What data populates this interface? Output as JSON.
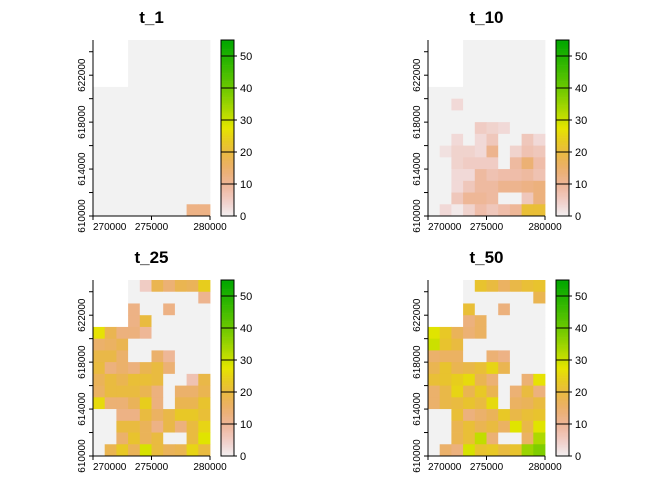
{
  "chart_data": [
    {
      "type": "heatmap",
      "title": "t_1",
      "x_ticks": [
        "270000",
        "275000",
        "280000"
      ],
      "y_ticks": [
        "610000",
        "614000",
        "618000",
        "622000"
      ],
      "x_range": [
        270000,
        280000
      ],
      "y_range": [
        610000,
        625000
      ],
      "legend": {
        "ticks": [
          "0",
          "10",
          "20",
          "30",
          "40",
          "50"
        ],
        "range": [
          0,
          55
        ],
        "placement": "right"
      },
      "grid": [
        [
          null,
          null,
          null,
          0,
          0,
          0,
          0,
          0,
          0,
          0
        ],
        [
          null,
          null,
          null,
          0,
          0,
          0,
          0,
          0,
          0,
          0
        ],
        [
          null,
          null,
          null,
          0,
          0,
          0,
          0,
          0,
          0,
          0
        ],
        [
          null,
          null,
          null,
          0,
          0,
          0,
          0,
          0,
          0,
          0
        ],
        [
          0,
          0,
          0,
          0,
          0,
          0,
          0,
          0,
          0,
          0
        ],
        [
          0,
          0,
          0,
          0,
          0,
          0,
          0,
          0,
          0,
          0
        ],
        [
          0,
          0,
          0,
          0,
          0,
          0,
          0,
          0,
          0,
          0
        ],
        [
          0,
          0,
          0,
          0,
          0,
          0,
          0,
          0,
          0,
          0
        ],
        [
          0,
          0,
          0,
          0,
          0,
          0,
          0,
          0,
          0,
          0
        ],
        [
          0,
          0,
          0,
          0,
          0,
          0,
          0,
          0,
          0,
          0
        ],
        [
          0,
          0,
          0,
          0,
          0,
          0,
          0,
          0,
          0,
          0
        ],
        [
          0,
          0,
          0,
          0,
          0,
          0,
          0,
          0,
          0,
          0
        ],
        [
          0,
          0,
          0,
          0,
          0,
          0,
          0,
          0,
          0,
          0
        ],
        [
          0,
          0,
          0,
          0,
          0,
          0,
          0,
          0,
          0,
          0
        ],
        [
          0,
          0,
          0,
          0,
          0,
          0,
          0,
          0,
          12,
          12
        ]
      ]
    },
    {
      "type": "heatmap",
      "title": "t_10",
      "x_ticks": [
        "270000",
        "275000",
        "280000"
      ],
      "y_ticks": [
        "610000",
        "614000",
        "618000",
        "622000"
      ],
      "x_range": [
        270000,
        280000
      ],
      "y_range": [
        610000,
        625000
      ],
      "legend": {
        "ticks": [
          "0",
          "10",
          "20",
          "30",
          "40",
          "50"
        ],
        "range": [
          0,
          55
        ],
        "placement": "right"
      },
      "grid": [
        [
          null,
          null,
          null,
          0,
          0,
          0,
          0,
          0,
          0,
          0
        ],
        [
          null,
          null,
          null,
          0,
          0,
          0,
          0,
          0,
          0,
          0
        ],
        [
          null,
          null,
          null,
          0,
          0,
          0,
          0,
          0,
          0,
          0
        ],
        [
          null,
          null,
          null,
          0,
          0,
          0,
          0,
          0,
          0,
          0
        ],
        [
          0,
          0,
          0,
          0,
          0,
          0,
          0,
          0,
          0,
          0
        ],
        [
          0,
          0,
          3,
          0,
          0,
          0,
          0,
          0,
          0,
          0
        ],
        [
          0,
          0,
          0,
          0,
          0,
          0,
          0,
          0,
          0,
          0
        ],
        [
          0,
          0,
          0,
          0,
          5,
          4,
          3,
          0,
          0,
          0
        ],
        [
          0,
          0,
          3,
          0,
          3,
          6,
          0,
          0,
          6,
          3
        ],
        [
          0,
          2,
          4,
          4,
          3,
          11,
          0,
          4,
          7,
          6
        ],
        [
          0,
          0,
          4,
          5,
          5,
          5,
          0,
          9,
          14,
          8
        ],
        [
          0,
          0,
          3,
          3,
          9,
          7,
          8,
          8,
          9,
          7
        ],
        [
          0,
          0,
          3,
          6,
          9,
          9,
          11,
          11,
          12,
          13
        ],
        [
          0,
          0,
          6,
          10,
          10,
          9,
          0,
          0,
          6,
          13
        ],
        [
          0,
          3,
          1,
          4,
          8,
          6,
          8,
          10,
          21,
          21
        ]
      ]
    },
    {
      "type": "heatmap",
      "title": "t_25",
      "x_ticks": [
        "270000",
        "275000",
        "280000"
      ],
      "y_ticks": [
        "610000",
        "614000",
        "618000",
        "622000"
      ],
      "x_range": [
        270000,
        280000
      ],
      "y_range": [
        610000,
        625000
      ],
      "legend": {
        "ticks": [
          "0",
          "10",
          "20",
          "30",
          "40",
          "50"
        ],
        "range": [
          0,
          55
        ],
        "placement": "right"
      },
      "grid": [
        [
          null,
          null,
          null,
          0,
          5,
          18,
          14,
          18,
          17,
          24
        ],
        [
          null,
          null,
          null,
          0,
          0,
          0,
          0,
          0,
          0,
          11
        ],
        [
          null,
          null,
          null,
          12,
          0,
          0,
          12,
          0,
          0,
          0
        ],
        [
          null,
          null,
          null,
          12,
          20,
          0,
          0,
          0,
          0,
          0
        ],
        [
          27,
          18,
          13,
          13,
          10,
          0,
          0,
          0,
          0,
          0
        ],
        [
          15,
          16,
          18,
          0,
          0,
          0,
          0,
          0,
          0,
          0
        ],
        [
          19,
          19,
          15,
          0,
          0,
          15,
          10,
          0,
          0,
          0
        ],
        [
          20,
          13,
          15,
          13,
          18,
          20,
          14,
          0,
          0,
          0
        ],
        [
          17,
          20,
          18,
          21,
          21,
          20,
          0,
          0,
          7,
          19
        ],
        [
          16,
          20,
          20,
          20,
          18,
          13,
          0,
          15,
          15,
          18
        ],
        [
          26,
          14,
          14,
          17,
          24,
          13,
          0,
          18,
          18,
          22
        ],
        [
          0,
          0,
          12,
          12,
          20,
          16,
          19,
          23,
          23,
          21
        ],
        [
          0,
          0,
          20,
          20,
          17,
          12,
          19,
          13,
          20,
          25
        ],
        [
          0,
          0,
          15,
          22,
          17,
          20,
          0,
          0,
          20,
          28
        ],
        [
          0,
          18,
          23,
          17,
          29,
          20,
          17,
          18,
          25,
          20
        ]
      ]
    },
    {
      "type": "heatmap",
      "title": "t_50",
      "x_ticks": [
        "270000",
        "275000",
        "280000"
      ],
      "y_ticks": [
        "610000",
        "614000",
        "618000",
        "622000"
      ],
      "x_range": [
        270000,
        280000
      ],
      "y_range": [
        610000,
        625000
      ],
      "legend": {
        "ticks": [
          "0",
          "10",
          "20",
          "30",
          "40",
          "50"
        ],
        "range": [
          0,
          55
        ],
        "placement": "right"
      },
      "grid": [
        [
          null,
          null,
          null,
          0,
          22,
          20,
          16,
          19,
          21,
          22
        ],
        [
          null,
          null,
          null,
          0,
          0,
          0,
          0,
          0,
          0,
          18
        ],
        [
          null,
          null,
          null,
          21,
          0,
          0,
          13,
          0,
          0,
          0
        ],
        [
          null,
          null,
          null,
          13,
          16,
          0,
          0,
          0,
          0,
          0
        ],
        [
          28,
          23,
          17,
          14,
          16,
          0,
          0,
          0,
          0,
          0
        ],
        [
          30,
          22,
          20,
          0,
          0,
          0,
          0,
          0,
          0,
          0
        ],
        [
          15,
          16,
          16,
          0,
          0,
          14,
          12,
          0,
          0,
          0
        ],
        [
          18,
          22,
          18,
          19,
          21,
          25,
          18,
          0,
          0,
          0
        ],
        [
          21,
          22,
          24,
          26,
          18,
          14,
          0,
          0,
          14,
          27
        ],
        [
          15,
          19,
          25,
          18,
          23,
          18,
          0,
          14,
          20,
          13
        ],
        [
          15,
          19,
          20,
          22,
          20,
          26,
          0,
          16,
          17,
          20
        ],
        [
          0,
          0,
          21,
          13,
          15,
          17,
          23,
          19,
          21,
          22
        ],
        [
          0,
          0,
          18,
          21,
          18,
          20,
          16,
          28,
          19,
          28
        ],
        [
          0,
          0,
          18,
          21,
          31,
          14,
          0,
          0,
          16,
          33
        ],
        [
          0,
          15,
          13,
          29,
          22,
          23,
          20,
          22,
          35,
          38
        ]
      ]
    }
  ]
}
